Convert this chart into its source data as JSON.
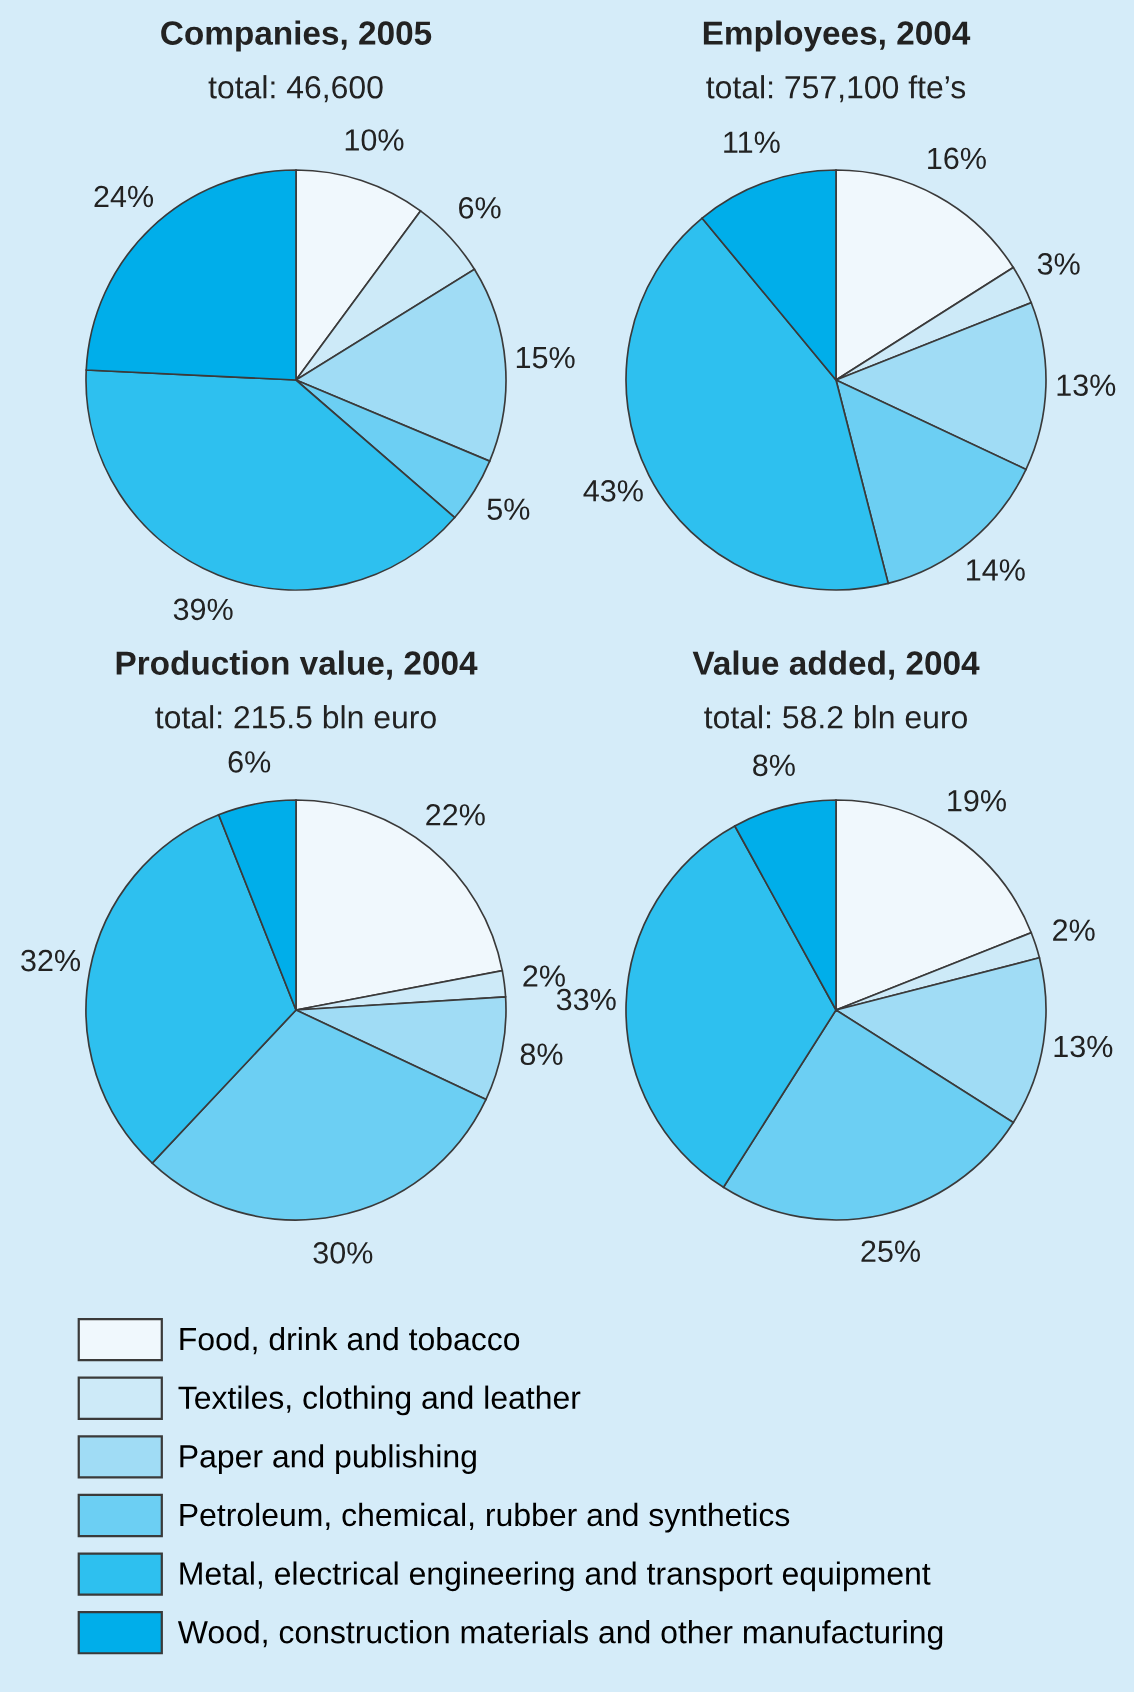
{
  "chart_data": [
    {
      "type": "pie",
      "title": "Companies, 2005",
      "subtitle": "total: 46,600",
      "categories": [
        "Food, drink and tobacco",
        "Textiles, clothing and leather",
        "Paper and publishing",
        "Petroleum, chemical, rubber and synthetics",
        "Metal, electrical engineering and transport equipment",
        "Wood, construction materials and other manufacturing"
      ],
      "values": [
        10,
        6,
        15,
        5,
        39,
        24
      ],
      "value_labels": [
        "10%",
        "6%",
        "15%",
        "5%",
        "39%",
        "24%"
      ],
      "colors": [
        "#f0f8fd",
        "#cdeaf8",
        "#a0dcf5",
        "#6ccff3",
        "#2ec0ef",
        "#00aeea"
      ],
      "legend": "bottom"
    },
    {
      "type": "pie",
      "title": "Employees, 2004",
      "subtitle": "total: 757,100 fte’s",
      "values": [
        16,
        3,
        13,
        14,
        43,
        11
      ],
      "value_labels": [
        "16%",
        "3%",
        "13%",
        "14%",
        "43%",
        "11%"
      ],
      "colors": [
        "#f0f8fd",
        "#cdeaf8",
        "#a0dcf5",
        "#6ccff3",
        "#2ec0ef",
        "#00aeea"
      ]
    },
    {
      "type": "pie",
      "title": "Production value, 2004",
      "subtitle": "total: 215.5 bln euro",
      "values": [
        22,
        2,
        8,
        30,
        32,
        6
      ],
      "value_labels": [
        "22%",
        "2%",
        "8%",
        "30%",
        "32%",
        "6%"
      ],
      "colors": [
        "#f0f8fd",
        "#cdeaf8",
        "#a0dcf5",
        "#6ccff3",
        "#2ec0ef",
        "#00aeea"
      ]
    },
    {
      "type": "pie",
      "title": "Value added, 2004",
      "subtitle": "total: 58.2 bln euro",
      "values": [
        19,
        2,
        13,
        25,
        33,
        8
      ],
      "value_labels": [
        "19%",
        "2%",
        "13%",
        "25%",
        "33%",
        "8%"
      ],
      "colors": [
        "#f0f8fd",
        "#cdeaf8",
        "#a0dcf5",
        "#6ccff3",
        "#2ec0ef",
        "#00aeea"
      ]
    }
  ]
}
